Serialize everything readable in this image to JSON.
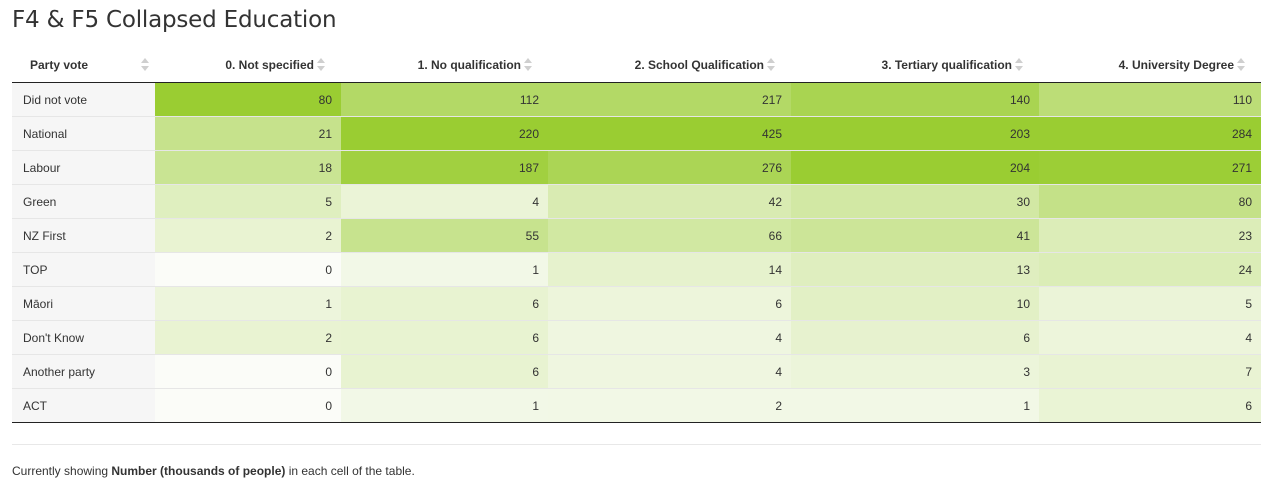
{
  "title": "F4 & F5 Collapsed Education",
  "chart_data": {
    "type": "heatmap",
    "title": "F4 & F5 Collapsed Education",
    "row_header": "Party vote",
    "columns": [
      "0. Not specified",
      "1. No qualification",
      "2. School Qualification",
      "3. Tertiary qualification",
      "4. University Degree"
    ],
    "rows": [
      "Did not vote",
      "National",
      "Labour",
      "Green",
      "NZ First",
      "TOP",
      "Māori",
      "Don't Know",
      "Another party",
      "ACT"
    ],
    "values": [
      [
        80,
        112,
        217,
        140,
        110
      ],
      [
        21,
        220,
        425,
        203,
        284
      ],
      [
        18,
        187,
        276,
        204,
        271
      ],
      [
        5,
        4,
        42,
        30,
        80
      ],
      [
        2,
        55,
        66,
        41,
        23
      ],
      [
        0,
        1,
        14,
        13,
        24
      ],
      [
        1,
        6,
        6,
        10,
        5
      ],
      [
        2,
        6,
        4,
        6,
        4
      ],
      [
        0,
        6,
        4,
        3,
        7
      ],
      [
        0,
        1,
        2,
        1,
        6
      ]
    ],
    "color_low": "#fbfcf8",
    "color_high": "#9acd32"
  },
  "footer": {
    "prefix": "Currently showing ",
    "measure": "Number (thousands of people)",
    "suffix": " in each cell of the table."
  }
}
